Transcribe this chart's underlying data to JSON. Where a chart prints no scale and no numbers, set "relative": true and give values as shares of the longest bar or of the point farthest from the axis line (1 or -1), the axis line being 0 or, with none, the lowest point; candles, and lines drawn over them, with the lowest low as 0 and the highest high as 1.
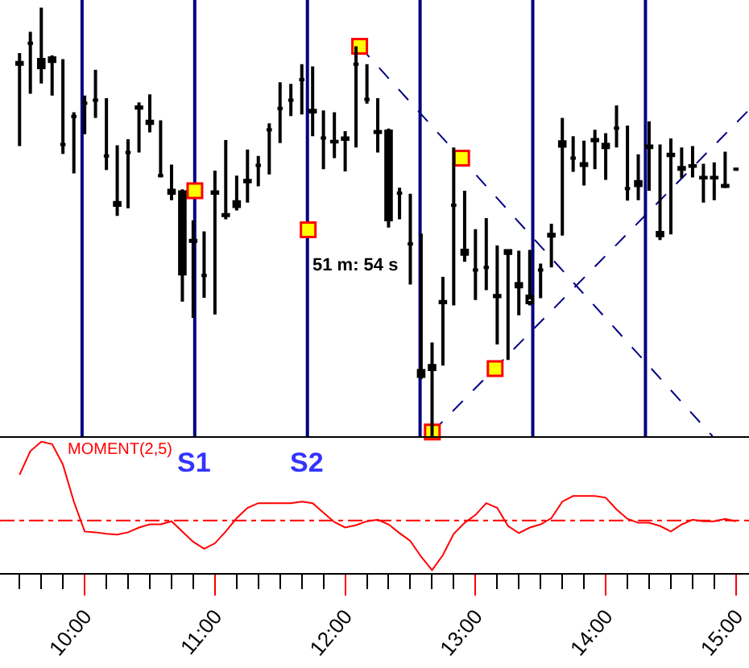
{
  "chart_data": [
    {
      "type": "candlestick",
      "relative": true,
      "color": "#000000",
      "xlim": [
        9.35,
        15.1
      ],
      "tick_labels": false,
      "x": [
        9.5,
        9.583,
        9.667,
        9.75,
        9.833,
        9.917,
        10,
        10.083,
        10.167,
        10.25,
        10.333,
        10.417,
        10.5,
        10.583,
        10.667,
        10.75,
        10.833,
        10.917,
        11,
        11.083,
        11.167,
        11.25,
        11.333,
        11.417,
        11.5,
        11.583,
        11.667,
        11.75,
        11.833,
        11.917,
        12,
        12.083,
        12.167,
        12.25,
        12.333,
        12.417,
        12.5,
        12.583,
        12.667,
        12.75,
        12.833,
        12.917,
        13,
        13.083,
        13.167,
        13.25,
        13.333,
        13.417,
        13.5,
        13.583,
        13.667,
        13.75,
        13.833,
        13.917,
        14,
        14.083,
        14.167,
        14.25,
        14.333,
        14.417,
        14.5,
        14.583,
        14.667,
        14.75,
        14.833,
        14.917,
        15
      ],
      "ohlc": [
        [
          0.868,
          0.894,
          0.677,
          0.872
        ],
        [
          0.917,
          0.944,
          0.799,
          0.917
        ],
        [
          0.879,
          1.0,
          0.823,
          0.86
        ],
        [
          0.883,
          0.889,
          0.795,
          0.875
        ],
        [
          0.681,
          0.88,
          0.659,
          0.681
        ],
        [
          0.746,
          0.756,
          0.613,
          0.746
        ],
        [
          0.777,
          0.795,
          0.705,
          0.777
        ],
        [
          0.784,
          0.855,
          0.743,
          0.784
        ],
        [
          0.654,
          0.789,
          0.621,
          0.654
        ],
        [
          0.545,
          0.679,
          0.514,
          0.539
        ],
        [
          0.662,
          0.693,
          0.532,
          0.662
        ],
        [
          0.766,
          0.779,
          0.662,
          0.768
        ],
        [
          0.735,
          0.798,
          0.709,
          0.73
        ],
        [
          0.608,
          0.737,
          0.604,
          0.608
        ],
        [
          0.567,
          0.634,
          0.551,
          0.574
        ],
        [
          0.57,
          0.576,
          0.314,
          0.379
        ],
        [
          0.455,
          0.504,
          0.276,
          0.457
        ],
        [
          0.375,
          0.478,
          0.323,
          0.375
        ],
        [
          0.567,
          0.62,
          0.284,
          0.57
        ],
        [
          0.515,
          0.691,
          0.506,
          0.517
        ],
        [
          0.536,
          0.608,
          0.527,
          0.547
        ],
        [
          0.594,
          0.669,
          0.545,
          0.597
        ],
        [
          0.632,
          0.654,
          0.583,
          0.632
        ],
        [
          0.715,
          0.73,
          0.611,
          0.715
        ],
        [
          0.765,
          0.826,
          0.684,
          0.765
        ],
        [
          0.784,
          0.822,
          0.747,
          0.784
        ],
        [
          0.832,
          0.868,
          0.751,
          0.832
        ],
        [
          0.757,
          0.863,
          0.7,
          0.76
        ],
        [
          0.696,
          0.76,
          0.623,
          0.696
        ],
        [
          0.687,
          0.756,
          0.649,
          0.688
        ],
        [
          0.693,
          0.712,
          0.618,
          0.696
        ],
        [
          0.868,
          0.91,
          0.674,
          0.868
        ],
        [
          0.786,
          0.868,
          0.776,
          0.786
        ],
        [
          0.709,
          0.789,
          0.662,
          0.711
        ],
        [
          0.712,
          0.718,
          0.487,
          0.505
        ],
        [
          0.567,
          0.58,
          0.506,
          0.567
        ],
        [
          0.449,
          0.566,
          0.354,
          0.449
        ],
        [
          0.153,
          0.473,
          0.134,
          0.14
        ],
        [
          0.156,
          0.219,
          0.0,
          0.165
        ],
        [
          0.312,
          0.372,
          0.165,
          0.314
        ],
        [
          0.539,
          0.674,
          0.305,
          0.539
        ],
        [
          0.434,
          0.573,
          0.407,
          0.425
        ],
        [
          0.388,
          0.483,
          0.318,
          0.388
        ],
        [
          0.394,
          0.509,
          0.341,
          0.394
        ],
        [
          0.328,
          0.445,
          0.214,
          0.326
        ],
        [
          0.427,
          0.435,
          0.178,
          0.433
        ],
        [
          0.356,
          0.433,
          0.282,
          0.349
        ],
        [
          0.312,
          0.435,
          0.305,
          0.327
        ],
        [
          0.388,
          0.403,
          0.322,
          0.388
        ],
        [
          0.467,
          0.496,
          0.394,
          0.471
        ],
        [
          0.677,
          0.743,
          0.468,
          0.687
        ],
        [
          0.649,
          0.7,
          0.617,
          0.649
        ],
        [
          0.632,
          0.69,
          0.585,
          0.636
        ],
        [
          0.69,
          0.715,
          0.623,
          0.692
        ],
        [
          0.681,
          0.707,
          0.598,
          0.674
        ],
        [
          0.719,
          0.772,
          0.674,
          0.719
        ],
        [
          0.578,
          0.725,
          0.55,
          0.578
        ],
        [
          0.585,
          0.658,
          0.551,
          0.594
        ],
        [
          0.677,
          0.735,
          0.573,
          0.674
        ],
        [
          0.468,
          0.681,
          0.458,
          0.475
        ],
        [
          0.658,
          0.695,
          0.471,
          0.655
        ],
        [
          0.627,
          0.674,
          0.602,
          0.623
        ],
        [
          0.63,
          0.677,
          0.604,
          0.631
        ],
        [
          0.604,
          0.636,
          0.545,
          0.603
        ],
        [
          0.604,
          0.639,
          0.551,
          0.603
        ],
        [
          0.583,
          0.664,
          0.579,
          0.585
        ],
        [
          0.623,
          0.627,
          0.62,
          0.623
        ]
      ],
      "series": [
        {
          "type": "line",
          "color": "#000080",
          "line_style": "dashed",
          "x": [
            12.111,
            14.82
          ],
          "values": [
            0.91,
            0.0
          ]
        },
        {
          "type": "line",
          "color": "#000080",
          "line_style": "dashed",
          "x": [
            12.669,
            15.095
          ],
          "values": [
            0.01,
            0.76
          ]
        },
        {
          "type": "scatter",
          "marker": "square",
          "color": "#ffff00",
          "x": [
            10.846,
            11.716,
            12.111,
            12.894,
            12.669,
            13.151
          ],
          "values": [
            0.573,
            0.482,
            0.91,
            0.649,
            0.01,
            0.158
          ]
        }
      ],
      "ref_lines": [
        {
          "axis": "x",
          "value": 9.98,
          "color": "#000080"
        },
        {
          "axis": "x",
          "value": 10.845,
          "label": "S1",
          "color": "#000080"
        },
        {
          "axis": "x",
          "value": 11.71,
          "label": "S2",
          "color": "#000080"
        },
        {
          "axis": "x",
          "value": 12.575,
          "color": "#000080"
        },
        {
          "axis": "x",
          "value": 13.44,
          "color": "#000080"
        },
        {
          "axis": "x",
          "value": 14.305,
          "color": "#000080"
        }
      ],
      "annotations": [
        {
          "text": "51 m: 54 s",
          "x": 11.72,
          "y": 0.4
        }
      ]
    },
    {
      "type": "line",
      "relative": true,
      "xlim": [
        9.35,
        15.1
      ],
      "tick_labels": "x",
      "x": [
        9.5,
        9.583,
        9.667,
        9.75,
        9.833,
        9.917,
        10,
        10.083,
        10.167,
        10.25,
        10.333,
        10.417,
        10.5,
        10.583,
        10.667,
        10.75,
        10.833,
        10.917,
        11,
        11.083,
        11.167,
        11.25,
        11.333,
        11.417,
        11.5,
        11.583,
        11.667,
        11.75,
        11.833,
        11.917,
        12,
        12.083,
        12.167,
        12.25,
        12.333,
        12.417,
        12.5,
        12.583,
        12.667,
        12.75,
        12.833,
        12.917,
        13,
        13.083,
        13.167,
        13.25,
        13.333,
        13.417,
        13.5,
        13.583,
        13.667,
        13.75,
        13.833,
        13.917,
        14,
        14.083,
        14.167,
        14.25,
        14.333,
        14.417,
        14.5,
        14.583,
        14.667,
        14.75,
        14.833,
        14.917,
        15
      ],
      "series": [
        {
          "name": "MOMENT(2,5)",
          "color": "#ff0000",
          "values": [
            0.58,
            0.88,
            1.0,
            0.97,
            0.71,
            0.24,
            -0.14,
            -0.15,
            -0.17,
            -0.18,
            -0.15,
            -0.09,
            -0.05,
            -0.05,
            -0.01,
            -0.14,
            -0.27,
            -0.36,
            -0.29,
            -0.14,
            0.03,
            0.16,
            0.22,
            0.22,
            0.22,
            0.22,
            0.24,
            0.22,
            0.1,
            -0.02,
            -0.09,
            -0.06,
            -0.01,
            0.01,
            -0.05,
            -0.16,
            -0.26,
            -0.46,
            -0.63,
            -0.44,
            -0.17,
            -0.03,
            0.07,
            0.22,
            0.16,
            -0.07,
            -0.16,
            -0.09,
            -0.05,
            0.03,
            0.24,
            0.31,
            0.31,
            0.31,
            0.29,
            0.14,
            0.02,
            -0.03,
            -0.03,
            -0.07,
            -0.14,
            -0.05,
            0.01,
            -0.01,
            -0.01,
            0.02,
            -0.01
          ]
        }
      ],
      "xticks": [
        {
          "value": 9.5,
          "label": null
        },
        {
          "value": 9.667,
          "label": null
        },
        {
          "value": 9.833,
          "label": null
        },
        {
          "value": 10,
          "label": "10:00"
        },
        {
          "value": 10.167,
          "label": null
        },
        {
          "value": 10.333,
          "label": null
        },
        {
          "value": 10.5,
          "label": null
        },
        {
          "value": 10.667,
          "label": null
        },
        {
          "value": 10.833,
          "label": null
        },
        {
          "value": 11,
          "label": "11:00"
        },
        {
          "value": 11.167,
          "label": null
        },
        {
          "value": 11.333,
          "label": null
        },
        {
          "value": 11.5,
          "label": null
        },
        {
          "value": 11.667,
          "label": null
        },
        {
          "value": 11.833,
          "label": null
        },
        {
          "value": 12,
          "label": "12:00"
        },
        {
          "value": 12.167,
          "label": null
        },
        {
          "value": 12.333,
          "label": null
        },
        {
          "value": 12.5,
          "label": null
        },
        {
          "value": 12.667,
          "label": null
        },
        {
          "value": 12.833,
          "label": null
        },
        {
          "value": 13,
          "label": "13:00"
        },
        {
          "value": 13.167,
          "label": null
        },
        {
          "value": 13.333,
          "label": null
        },
        {
          "value": 13.5,
          "label": null
        },
        {
          "value": 13.667,
          "label": null
        },
        {
          "value": 13.833,
          "label": null
        },
        {
          "value": 14,
          "label": "14:00"
        },
        {
          "value": 14.167,
          "label": null
        },
        {
          "value": 14.333,
          "label": null
        },
        {
          "value": 14.5,
          "label": null
        },
        {
          "value": 14.667,
          "label": null
        },
        {
          "value": 14.833,
          "label": null
        },
        {
          "value": 15,
          "label": "15:00"
        }
      ],
      "ref_lines": [
        {
          "axis": "y",
          "value": 0,
          "color": "#ff0000",
          "line_style": "dashed"
        }
      ]
    }
  ]
}
